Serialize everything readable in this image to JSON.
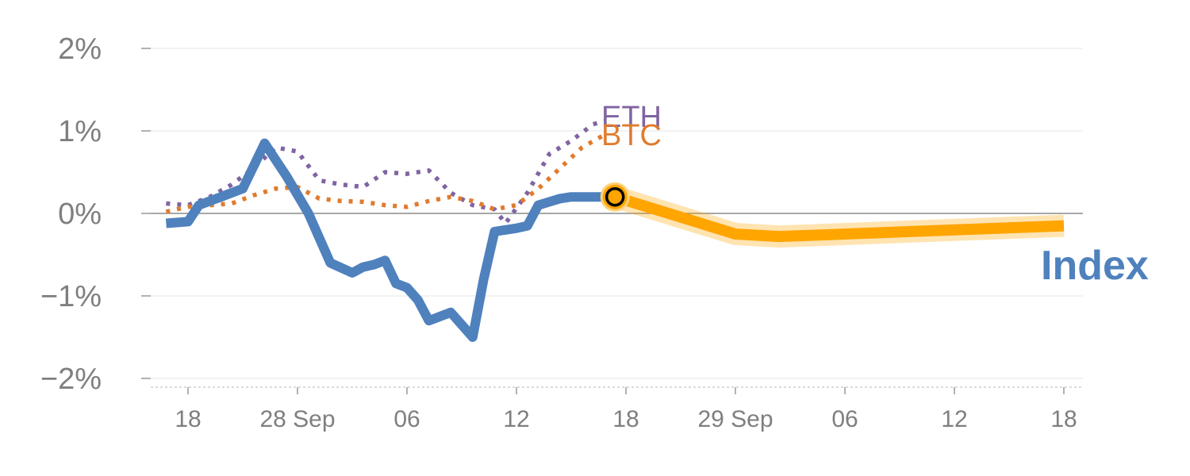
{
  "chart_data": {
    "type": "line",
    "y_unit": "%",
    "ylim": [
      -2,
      2
    ],
    "y_ticks": [
      2,
      1,
      0,
      -1,
      -2
    ],
    "y_tick_labels": [
      "2%",
      "1%",
      "0%",
      "−1%",
      "−2%"
    ],
    "grid": true,
    "x_ticks": [
      {
        "day": 0,
        "label": "18"
      },
      {
        "day": 10,
        "label": "28 Sep"
      },
      {
        "day": 20,
        "label": "06"
      },
      {
        "day": 30,
        "label": "12"
      },
      {
        "day": 40,
        "label": "18"
      },
      {
        "day": 50,
        "label": "29 Sep"
      },
      {
        "day": 60,
        "label": "06"
      },
      {
        "day": 70,
        "label": "12"
      },
      {
        "day": 80,
        "label": "18"
      }
    ],
    "series": [
      {
        "name": "Index",
        "color": "#4f81bd",
        "style": "solid",
        "x": [
          -2,
          0,
          1,
          3,
          5,
          7,
          9,
          11,
          12,
          13,
          15,
          16,
          17,
          18,
          19,
          20,
          21,
          22,
          23,
          24,
          25,
          26,
          27,
          28,
          30,
          31,
          32,
          34,
          35,
          37,
          38,
          39
        ],
        "y": [
          -0.12,
          -0.1,
          0.1,
          0.2,
          0.3,
          0.85,
          0.45,
          0.0,
          -0.3,
          -0.6,
          -0.72,
          -0.65,
          -0.62,
          -0.57,
          -0.85,
          -0.9,
          -1.05,
          -1.3,
          -1.25,
          -1.2,
          -1.35,
          -1.5,
          -0.8,
          -0.22,
          -0.18,
          -0.15,
          0.1,
          0.18,
          0.2,
          0.2,
          0.2,
          0.2
        ]
      },
      {
        "name": "",
        "color": "#ffa500",
        "style": "forecast",
        "x": [
          39,
          50,
          54,
          80
        ],
        "y": [
          0.2,
          -0.25,
          -0.28,
          -0.15
        ]
      },
      {
        "name": "ETH",
        "color": "#8064a2",
        "style": "dotted",
        "x": [
          -2,
          0,
          2,
          4,
          6,
          8,
          10,
          12,
          14,
          16,
          18,
          20,
          22,
          24,
          26,
          28,
          29,
          31,
          33,
          35,
          37,
          38
        ],
        "y": [
          0.12,
          0.1,
          0.2,
          0.35,
          0.55,
          0.8,
          0.75,
          0.4,
          0.35,
          0.32,
          0.5,
          0.48,
          0.52,
          0.25,
          0.1,
          0.05,
          -0.12,
          0.25,
          0.72,
          0.88,
          1.08,
          1.12
        ]
      },
      {
        "name": "BTC",
        "color": "#e07b2e",
        "style": "dotted",
        "x": [
          -2,
          0,
          2,
          4,
          6,
          8,
          10,
          12,
          14,
          16,
          18,
          20,
          22,
          24,
          26,
          28,
          30,
          32,
          34,
          36,
          38
        ],
        "y": [
          0.02,
          0.08,
          0.1,
          0.12,
          0.22,
          0.3,
          0.32,
          0.18,
          0.15,
          0.14,
          0.1,
          0.08,
          0.15,
          0.2,
          0.15,
          0.05,
          0.1,
          0.3,
          0.55,
          0.8,
          0.95
        ]
      }
    ],
    "highlight_point": {
      "x": 39,
      "y": 0.2
    }
  }
}
